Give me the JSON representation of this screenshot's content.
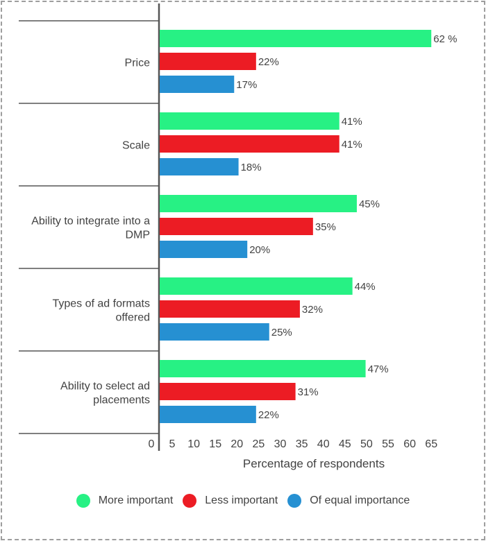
{
  "chart_data": {
    "type": "bar",
    "orientation": "horizontal",
    "title": "",
    "xlabel": "Percentage of respondents",
    "ylabel": "",
    "xlim": [
      0,
      65
    ],
    "xticks": [
      "0",
      "5",
      "10",
      "15",
      "20",
      "25",
      "30",
      "35",
      "40",
      "45",
      "50",
      "55",
      "60",
      "65"
    ],
    "grid": false,
    "legend_position": "bottom",
    "categories": [
      [
        "Price"
      ],
      [
        "Scale"
      ],
      [
        "Ability to integrate into a",
        "DMP"
      ],
      [
        "Types of ad formats",
        "offered"
      ],
      [
        "Ability to select ad",
        "placements"
      ]
    ],
    "series": [
      {
        "name": "More important",
        "color": "#27f184",
        "values": [
          62,
          41,
          45,
          44,
          47
        ],
        "labels": [
          "62 %",
          "41%",
          "45%",
          "44%",
          "47%"
        ]
      },
      {
        "name": "Less important",
        "color": "#ec1c24",
        "values": [
          22,
          41,
          35,
          32,
          31
        ],
        "labels": [
          "22%",
          "41%",
          "35%",
          "32%",
          "31%"
        ]
      },
      {
        "name": "Of equal importance",
        "color": "#2690d2",
        "values": [
          17,
          18,
          20,
          25,
          22
        ],
        "labels": [
          "17%",
          "18%",
          "20%",
          "25%",
          "22%"
        ]
      }
    ]
  },
  "legend": {
    "items": [
      {
        "label": "More important",
        "color": "#27f184"
      },
      {
        "label": "Less important",
        "color": "#ec1c24"
      },
      {
        "label": "Of equal importance",
        "color": "#2690d2"
      }
    ]
  }
}
